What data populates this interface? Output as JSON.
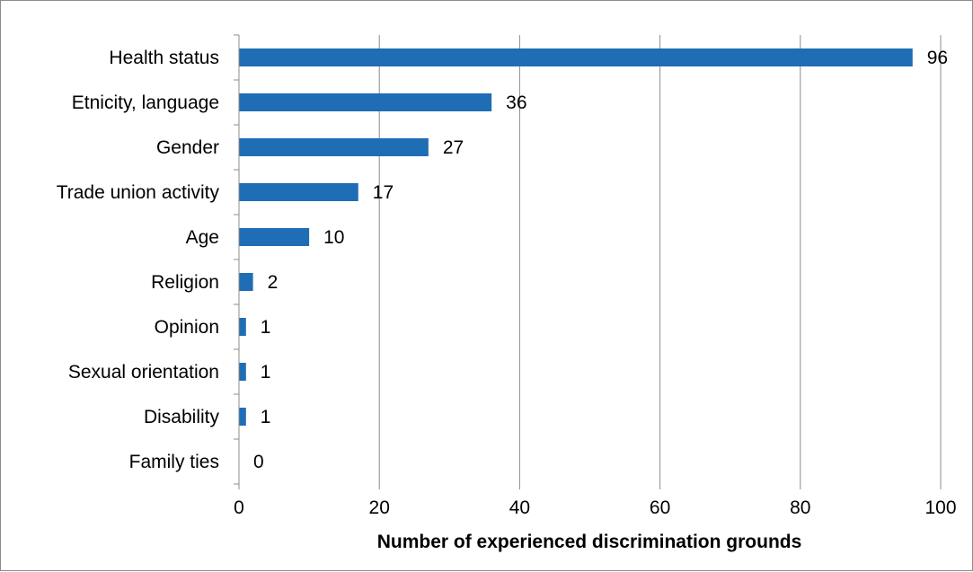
{
  "chart_data": {
    "type": "bar",
    "orientation": "horizontal",
    "categories": [
      "Health status",
      "Etnicity, language",
      "Gender",
      "Trade union activity",
      "Age",
      "Religion",
      "Opinion",
      "Sexual orientation",
      "Disability",
      "Family ties"
    ],
    "values": [
      96,
      36,
      27,
      17,
      10,
      2,
      1,
      1,
      1,
      0
    ],
    "title": "",
    "xlabel": "Number of experienced discrimination grounds",
    "ylabel": "",
    "xlim": [
      0,
      100
    ],
    "xticks": [
      "0",
      "20",
      "40",
      "60",
      "80",
      "100"
    ],
    "grid": "vertical",
    "data_labels": true,
    "bar_color": "#1f6db5",
    "grid_color": "#8c8c8c"
  }
}
